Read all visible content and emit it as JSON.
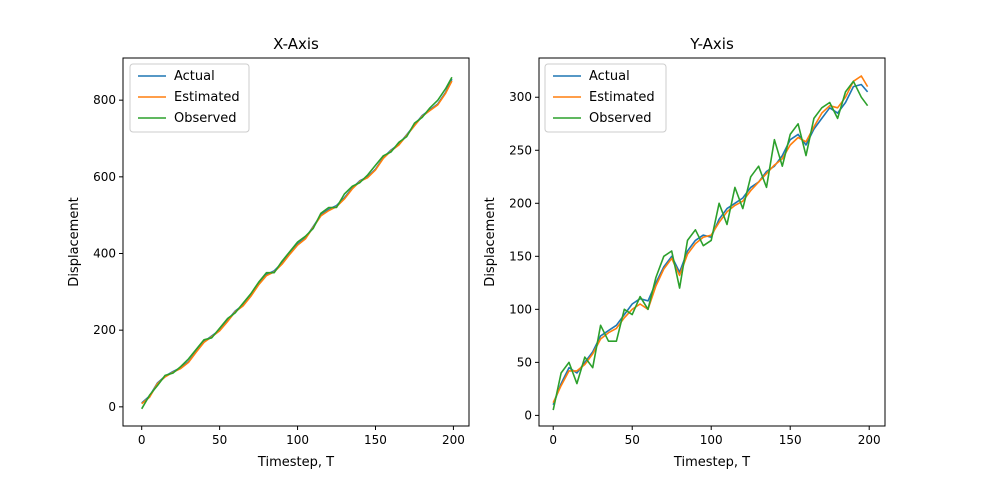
{
  "chart_data": [
    {
      "type": "line",
      "title": "X-Axis",
      "xlabel": "Timestep, T",
      "ylabel": "Displacement",
      "xlim": [
        -12,
        210
      ],
      "ylim": [
        -50,
        910
      ],
      "xticks": [
        0,
        50,
        100,
        150,
        200
      ],
      "yticks": [
        0,
        200,
        400,
        600,
        800
      ],
      "grid": false,
      "legend": "top-left",
      "x": [
        0,
        5,
        10,
        15,
        20,
        25,
        30,
        35,
        40,
        45,
        50,
        55,
        60,
        65,
        70,
        75,
        80,
        85,
        90,
        95,
        100,
        105,
        110,
        115,
        120,
        125,
        130,
        135,
        140,
        145,
        150,
        155,
        160,
        165,
        170,
        175,
        180,
        185,
        190,
        195,
        199
      ],
      "series": [
        {
          "name": "Actual",
          "color": "#1f77b4",
          "values": [
            10,
            28,
            62,
            80,
            92,
            102,
            118,
            145,
            170,
            185,
            200,
            225,
            250,
            265,
            290,
            320,
            345,
            355,
            375,
            400,
            425,
            440,
            470,
            500,
            515,
            525,
            545,
            570,
            590,
            600,
            620,
            650,
            670,
            685,
            710,
            735,
            760,
            775,
            790,
            820,
            855
          ]
        },
        {
          "name": "Estimated",
          "color": "#ff7f0e",
          "values": [
            8,
            25,
            60,
            78,
            90,
            100,
            116,
            143,
            168,
            183,
            198,
            222,
            248,
            263,
            288,
            318,
            342,
            352,
            372,
            398,
            422,
            438,
            468,
            498,
            512,
            522,
            542,
            568,
            588,
            598,
            618,
            648,
            668,
            683,
            708,
            733,
            758,
            773,
            788,
            818,
            850
          ]
        },
        {
          "name": "Observed",
          "color": "#2ca02c",
          "values": [
            -5,
            30,
            55,
            82,
            88,
            105,
            125,
            150,
            175,
            180,
            205,
            230,
            245,
            270,
            295,
            325,
            350,
            350,
            380,
            405,
            430,
            445,
            465,
            505,
            520,
            520,
            555,
            575,
            585,
            605,
            630,
            655,
            665,
            690,
            705,
            740,
            755,
            780,
            800,
            830,
            860
          ]
        }
      ]
    },
    {
      "type": "line",
      "title": "Y-Axis",
      "xlabel": "Timestep, T",
      "ylabel": "Displacement",
      "xlim": [
        -9,
        210
      ],
      "ylim": [
        -10,
        337
      ],
      "xticks": [
        0,
        50,
        100,
        150,
        200
      ],
      "yticks": [
        0,
        50,
        100,
        150,
        200,
        250,
        300
      ],
      "grid": false,
      "legend": "top-left",
      "x": [
        0,
        5,
        10,
        15,
        20,
        25,
        30,
        35,
        40,
        45,
        50,
        55,
        60,
        65,
        70,
        75,
        80,
        85,
        90,
        95,
        100,
        105,
        110,
        115,
        120,
        125,
        130,
        135,
        140,
        145,
        150,
        155,
        160,
        165,
        170,
        175,
        180,
        185,
        190,
        195,
        199
      ],
      "series": [
        {
          "name": "Actual",
          "color": "#1f77b4",
          "values": [
            10,
            30,
            45,
            40,
            50,
            60,
            75,
            80,
            85,
            95,
            105,
            110,
            108,
            125,
            140,
            150,
            135,
            155,
            165,
            170,
            168,
            185,
            195,
            200,
            205,
            215,
            220,
            230,
            235,
            245,
            260,
            265,
            255,
            270,
            280,
            290,
            285,
            295,
            310,
            312,
            305
          ]
        },
        {
          "name": "Estimated",
          "color": "#ff7f0e",
          "values": [
            12,
            28,
            42,
            42,
            48,
            58,
            72,
            78,
            82,
            92,
            100,
            105,
            100,
            122,
            138,
            148,
            132,
            152,
            162,
            168,
            170,
            182,
            192,
            198,
            202,
            212,
            220,
            228,
            236,
            242,
            255,
            262,
            258,
            272,
            285,
            292,
            290,
            300,
            315,
            320,
            310
          ]
        },
        {
          "name": "Observed",
          "color": "#2ca02c",
          "values": [
            5,
            40,
            50,
            30,
            55,
            45,
            85,
            70,
            70,
            100,
            95,
            112,
            100,
            130,
            150,
            155,
            120,
            165,
            175,
            160,
            165,
            200,
            180,
            215,
            195,
            225,
            235,
            215,
            260,
            235,
            265,
            275,
            245,
            280,
            290,
            295,
            280,
            305,
            315,
            300,
            292
          ]
        }
      ]
    }
  ]
}
